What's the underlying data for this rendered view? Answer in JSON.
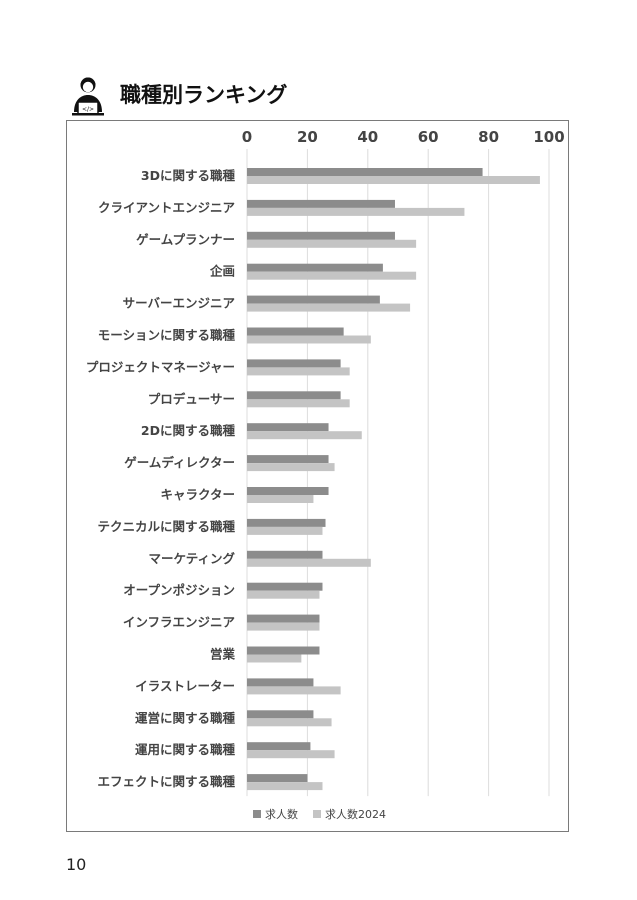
{
  "page": {
    "title": "職種別ランキング",
    "page_number": "10"
  },
  "icons": {
    "header": "person-at-laptop-icon"
  },
  "colors": {
    "series_1": "#8c8c8c",
    "series_2": "#c4c4c4",
    "grid": "#dcdcdc",
    "text": "#444444"
  },
  "chart_data": {
    "type": "bar",
    "orientation": "horizontal",
    "title": "",
    "xlabel": "",
    "ylabel": "",
    "xlim": [
      0,
      100
    ],
    "ticks": [
      "0",
      "20",
      "40",
      "60",
      "80",
      "100"
    ],
    "tick_values": [
      0,
      20,
      40,
      60,
      80,
      100
    ],
    "grid": true,
    "legend_position": "bottom",
    "categories": [
      "3Dに関する職種",
      "クライアントエンジニア",
      "ゲームプランナー",
      "企画",
      "サーバーエンジニア",
      "モーションに関する職種",
      "プロジェクトマネージャー",
      "プロデューサー",
      "2Dに関する職種",
      "ゲームディレクター",
      "キャラクター",
      "テクニカルに関する職種",
      "マーケティング",
      "オープンポジション",
      "インフラエンジニア",
      "営業",
      "イラストレーター",
      "運営に関する職種",
      "運用に関する職種",
      "エフェクトに関する職種"
    ],
    "series": [
      {
        "name": "求人数",
        "values": [
          78,
          49,
          49,
          45,
          44,
          32,
          31,
          31,
          27,
          27,
          27,
          26,
          25,
          25,
          24,
          24,
          22,
          22,
          21,
          20
        ]
      },
      {
        "name": "求人数2024",
        "values": [
          97,
          72,
          56,
          56,
          54,
          41,
          34,
          34,
          38,
          29,
          22,
          25,
          41,
          24,
          24,
          18,
          31,
          28,
          29,
          25
        ]
      }
    ]
  }
}
